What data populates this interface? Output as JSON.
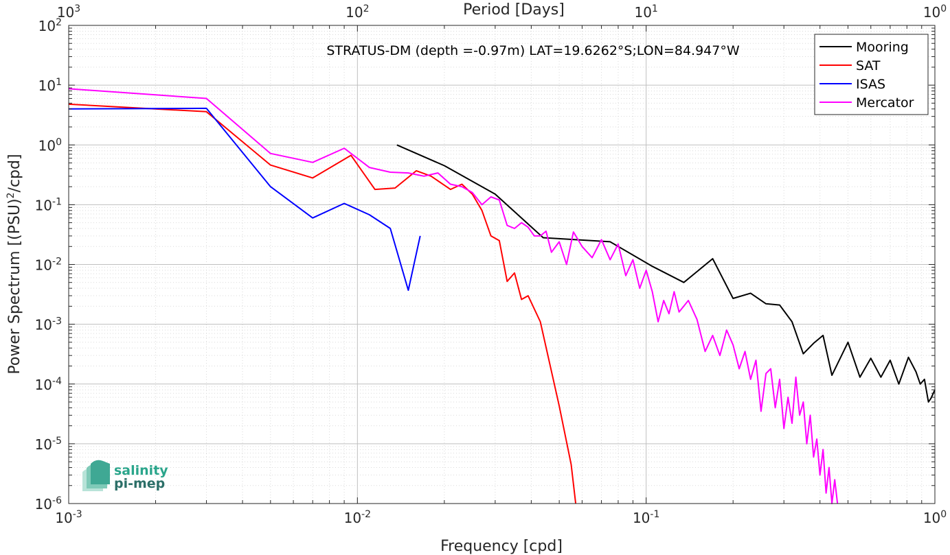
{
  "chart_data": {
    "type": "line",
    "title": "STRATUS-DM (depth =-0.97m) LAT=19.6262°S;LON=84.947°W",
    "xlabel": "Frequency [cpd]",
    "ylabel": "Power Spectrum [(PSU)²/cpd]",
    "top_axis_label": "Period [Days]",
    "xscale": "log",
    "yscale": "log",
    "xlim": [
      0.001,
      1
    ],
    "ylim": [
      1e-06,
      100
    ],
    "grid": true,
    "legend_position": "top-right",
    "x_ticks": [
      {
        "value": 0.001,
        "base": "10",
        "exp": "-3"
      },
      {
        "value": 0.01,
        "base": "10",
        "exp": "-2"
      },
      {
        "value": 0.1,
        "base": "10",
        "exp": "-1"
      },
      {
        "value": 1,
        "base": "10",
        "exp": "0"
      }
    ],
    "top_ticks": [
      {
        "value": 0.001,
        "base": "10",
        "exp": "3"
      },
      {
        "value": 0.01,
        "base": "10",
        "exp": "2"
      },
      {
        "value": 0.1,
        "base": "10",
        "exp": "1"
      },
      {
        "value": 1,
        "base": "10",
        "exp": "0"
      }
    ],
    "y_ticks": [
      {
        "value": 1e-06,
        "base": "10",
        "exp": "-6"
      },
      {
        "value": 1e-05,
        "base": "10",
        "exp": "-5"
      },
      {
        "value": 0.0001,
        "base": "10",
        "exp": "-4"
      },
      {
        "value": 0.001,
        "base": "10",
        "exp": "-3"
      },
      {
        "value": 0.01,
        "base": "10",
        "exp": "-2"
      },
      {
        "value": 0.1,
        "base": "10",
        "exp": "-1"
      },
      {
        "value": 1,
        "base": "10",
        "exp": "0"
      },
      {
        "value": 10,
        "base": "10",
        "exp": "1"
      },
      {
        "value": 100,
        "base": "10",
        "exp": "2"
      }
    ],
    "series": [
      {
        "name": "Mooring",
        "color": "#000000",
        "points": [
          [
            0.0137,
            1.0
          ],
          [
            0.02,
            0.45
          ],
          [
            0.03,
            0.15
          ],
          [
            0.044,
            0.028
          ],
          [
            0.075,
            0.024
          ],
          [
            0.105,
            0.0093
          ],
          [
            0.135,
            0.005
          ],
          [
            0.17,
            0.0125
          ],
          [
            0.2,
            0.0027
          ],
          [
            0.23,
            0.0033
          ],
          [
            0.26,
            0.0022
          ],
          [
            0.29,
            0.0021
          ],
          [
            0.32,
            0.0011
          ],
          [
            0.35,
            0.00032
          ],
          [
            0.38,
            0.00048
          ],
          [
            0.41,
            0.00065
          ],
          [
            0.44,
            0.00014
          ],
          [
            0.5,
            0.0005
          ],
          [
            0.55,
            0.00013
          ],
          [
            0.6,
            0.00027
          ],
          [
            0.65,
            0.00013
          ],
          [
            0.7,
            0.00025
          ],
          [
            0.75,
            0.0001
          ],
          [
            0.81,
            0.00028
          ],
          [
            0.86,
            0.00016
          ],
          [
            0.89,
            0.0001
          ],
          [
            0.92,
            0.00012
          ],
          [
            0.95,
            5e-05
          ],
          [
            0.97,
            5.8e-05
          ],
          [
            1.0,
            8e-05
          ]
        ]
      },
      {
        "name": "SAT",
        "color": "#ff0000",
        "points": [
          [
            0.001,
            4.8
          ],
          [
            0.003,
            3.6
          ],
          [
            0.005,
            0.46
          ],
          [
            0.007,
            0.28
          ],
          [
            0.0095,
            0.67
          ],
          [
            0.0115,
            0.18
          ],
          [
            0.0135,
            0.19
          ],
          [
            0.016,
            0.37
          ],
          [
            0.018,
            0.3
          ],
          [
            0.021,
            0.18
          ],
          [
            0.023,
            0.22
          ],
          [
            0.025,
            0.15
          ],
          [
            0.027,
            0.08
          ],
          [
            0.029,
            0.03
          ],
          [
            0.031,
            0.025
          ],
          [
            0.033,
            0.0052
          ],
          [
            0.035,
            0.0072
          ],
          [
            0.037,
            0.0026
          ],
          [
            0.039,
            0.003
          ],
          [
            0.043,
            0.0011
          ],
          [
            0.05,
            4.3e-05
          ],
          [
            0.055,
            4.5e-06
          ],
          [
            0.057,
            1e-06
          ]
        ]
      },
      {
        "name": "ISAS",
        "color": "#0000ff",
        "points": [
          [
            0.001,
            4.0
          ],
          [
            0.003,
            4.1
          ],
          [
            0.005,
            0.2
          ],
          [
            0.007,
            0.06
          ],
          [
            0.009,
            0.105
          ],
          [
            0.011,
            0.068
          ],
          [
            0.013,
            0.04
          ],
          [
            0.015,
            0.0037
          ],
          [
            0.0165,
            0.03
          ]
        ]
      },
      {
        "name": "Mercator",
        "color": "#ff00ff",
        "points": [
          [
            0.001,
            8.7
          ],
          [
            0.003,
            6.0
          ],
          [
            0.005,
            0.72
          ],
          [
            0.007,
            0.51
          ],
          [
            0.009,
            0.88
          ],
          [
            0.011,
            0.42
          ],
          [
            0.013,
            0.35
          ],
          [
            0.015,
            0.34
          ],
          [
            0.017,
            0.3
          ],
          [
            0.019,
            0.34
          ],
          [
            0.021,
            0.22
          ],
          [
            0.023,
            0.2
          ],
          [
            0.025,
            0.16
          ],
          [
            0.027,
            0.1
          ],
          [
            0.029,
            0.135
          ],
          [
            0.031,
            0.12
          ],
          [
            0.033,
            0.045
          ],
          [
            0.035,
            0.04
          ],
          [
            0.037,
            0.05
          ],
          [
            0.039,
            0.042
          ],
          [
            0.041,
            0.03
          ],
          [
            0.043,
            0.03
          ],
          [
            0.045,
            0.036
          ],
          [
            0.047,
            0.016
          ],
          [
            0.05,
            0.024
          ],
          [
            0.053,
            0.01
          ],
          [
            0.056,
            0.035
          ],
          [
            0.06,
            0.02
          ],
          [
            0.065,
            0.013
          ],
          [
            0.07,
            0.026
          ],
          [
            0.075,
            0.012
          ],
          [
            0.08,
            0.022
          ],
          [
            0.085,
            0.0065
          ],
          [
            0.09,
            0.012
          ],
          [
            0.095,
            0.004
          ],
          [
            0.1,
            0.008
          ],
          [
            0.105,
            0.0035
          ],
          [
            0.11,
            0.0011
          ],
          [
            0.115,
            0.0025
          ],
          [
            0.12,
            0.0015
          ],
          [
            0.125,
            0.0035
          ],
          [
            0.13,
            0.0016
          ],
          [
            0.14,
            0.0025
          ],
          [
            0.15,
            0.0012
          ],
          [
            0.16,
            0.00035
          ],
          [
            0.17,
            0.00065
          ],
          [
            0.18,
            0.0003
          ],
          [
            0.19,
            0.0008
          ],
          [
            0.2,
            0.00045
          ],
          [
            0.21,
            0.00018
          ],
          [
            0.22,
            0.00035
          ],
          [
            0.23,
            0.00012
          ],
          [
            0.24,
            0.00025
          ],
          [
            0.25,
            3.5e-05
          ],
          [
            0.26,
            0.00015
          ],
          [
            0.27,
            0.00018
          ],
          [
            0.28,
            4e-05
          ],
          [
            0.29,
            0.00012
          ],
          [
            0.3,
            1.8e-05
          ],
          [
            0.31,
            6e-05
          ],
          [
            0.32,
            2.2e-05
          ],
          [
            0.33,
            0.00013
          ],
          [
            0.34,
            3e-05
          ],
          [
            0.35,
            5e-05
          ],
          [
            0.36,
            1e-05
          ],
          [
            0.37,
            3e-05
          ],
          [
            0.38,
            6e-06
          ],
          [
            0.39,
            1.2e-05
          ],
          [
            0.4,
            3e-06
          ],
          [
            0.41,
            8e-06
          ],
          [
            0.42,
            1.5e-06
          ],
          [
            0.43,
            4e-06
          ],
          [
            0.44,
            1e-06
          ],
          [
            0.45,
            2.5e-06
          ],
          [
            0.46,
            1e-06
          ]
        ]
      }
    ]
  },
  "logo": {
    "line1": "salinity",
    "line2": "pi-mep"
  }
}
